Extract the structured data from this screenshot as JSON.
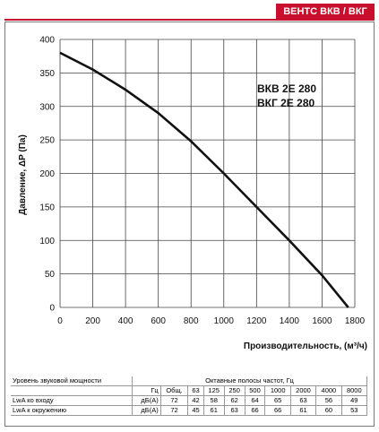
{
  "brand": "ВЕНТС ВКВ / ВКГ",
  "chart_data": {
    "type": "line",
    "ylabel": "Давление, ΔP (Па)",
    "xlabel": "Производительность, (м³/ч)",
    "xlim": [
      0,
      1800
    ],
    "ylim": [
      0,
      400
    ],
    "xticks": [
      "0",
      "200",
      "400",
      "600",
      "800",
      "1000",
      "1200",
      "1400",
      "1600",
      "1800"
    ],
    "yticks": [
      "0",
      "50",
      "100",
      "150",
      "200",
      "250",
      "300",
      "350",
      "400"
    ],
    "grid": true,
    "annotation": [
      "ВКВ 2Е 280",
      "ВКГ 2Е 280"
    ],
    "series": [
      {
        "x": [
          0,
          200,
          400,
          600,
          800,
          1000,
          1200,
          1400,
          1600,
          1760
        ],
        "y": [
          380,
          355,
          325,
          290,
          248,
          200,
          150,
          100,
          48,
          0
        ]
      }
    ]
  },
  "table": {
    "head_left": "Уровень звуковой мощности",
    "head_right": "Октавные полосы частот, Гц",
    "hz": "Гц",
    "cols": [
      "Общ.",
      "63",
      "125",
      "250",
      "500",
      "1000",
      "2000",
      "4000",
      "8000"
    ],
    "rows": [
      {
        "label": "LwA ко входу",
        "unit": "дБ(А)",
        "values": [
          "72",
          "42",
          "58",
          "62",
          "64",
          "65",
          "63",
          "56",
          "49"
        ]
      },
      {
        "label": "LwA к окружению",
        "unit": "дБ(А)",
        "values": [
          "72",
          "45",
          "61",
          "63",
          "66",
          "66",
          "61",
          "60",
          "53"
        ]
      }
    ]
  }
}
